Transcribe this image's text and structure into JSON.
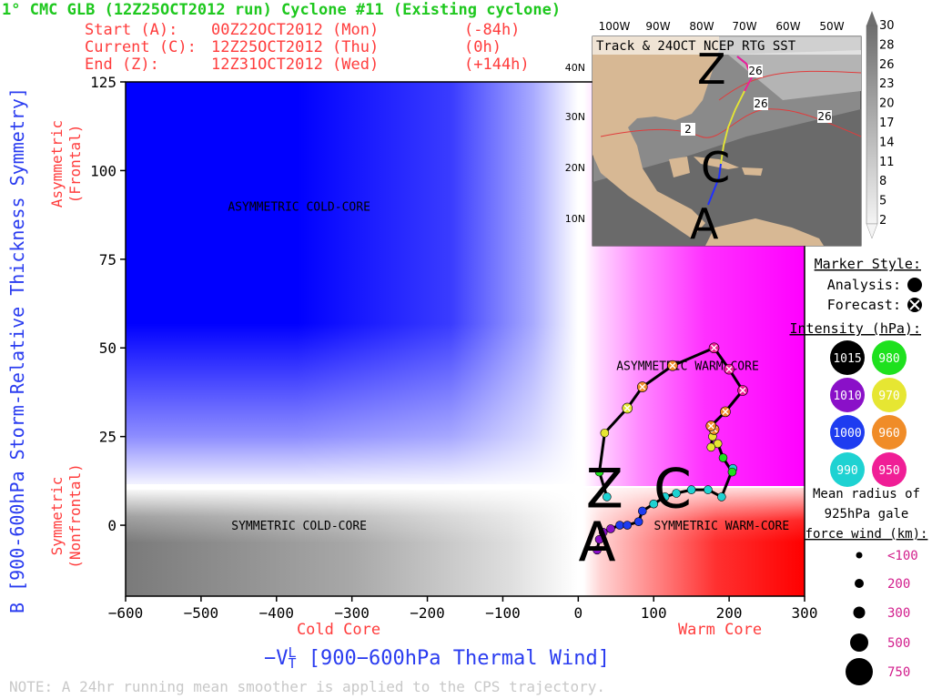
{
  "header": {
    "title": "1° CMC GLB (12Z25OCT2012 run) Cyclone #11 (Existing cyclone)",
    "start_label": "Start (A):",
    "start_time": "00Z22OCT2012 (Mon)",
    "start_offset": "(-84h)",
    "current_label": "Current (C):",
    "current_time": "12Z25OCT2012 (Thu)",
    "current_offset": "(0h)",
    "end_label": "End (Z):",
    "end_time": "12Z31OCT2012 (Wed)",
    "end_offset": "(+144h)"
  },
  "colors": {
    "title": "#1ec81e",
    "header": "#ff3c3c",
    "axis_blue": "#2a3cf0",
    "asym_cold": "#0000ff",
    "sym_warm": "#ff0000",
    "asym_warm": "#ff00ff"
  },
  "chart_data": {
    "type": "scatter",
    "xlabel": "-V_T^L [900-600hPa Thermal Wind]",
    "ylabel": "B [900-600hPa Storm-Relative Thickness Symmetry]",
    "xlim": [
      -600,
      300
    ],
    "ylim": [
      -20,
      125
    ],
    "xticks": [
      -600,
      -500,
      -400,
      -300,
      -200,
      -100,
      0,
      100,
      200,
      300
    ],
    "yticks": [
      0,
      25,
      50,
      75,
      100,
      125
    ],
    "x_side_labels": [
      "Cold Core",
      "Warm Core"
    ],
    "y_side_labels": [
      {
        "line1": "Symmetric",
        "line2": "(Nonfrontal)"
      },
      {
        "line1": "Asymmetric",
        "line2": "(Frontal)"
      }
    ],
    "region_labels": [
      {
        "text": "ASYMMETRIC COLD-CORE",
        "x": -370,
        "y": 90
      },
      {
        "text": "ASYMMETRIC WARM-CORE",
        "x": 145,
        "y": 45
      },
      {
        "text": "SYMMETRIC COLD-CORE",
        "x": -370,
        "y": 0
      },
      {
        "text": "SYMMETRIC WARM-CORE",
        "x": 190,
        "y": 0
      }
    ],
    "trajectory": [
      {
        "x": 25,
        "y": -7,
        "p": 1010,
        "fc": false
      },
      {
        "x": 28,
        "y": -4,
        "p": 1010,
        "fc": false
      },
      {
        "x": 33,
        "y": -2,
        "p": 1010,
        "fc": false
      },
      {
        "x": 43,
        "y": -1,
        "p": 1005,
        "fc": false
      },
      {
        "x": 55,
        "y": 0,
        "p": 1000,
        "fc": false
      },
      {
        "x": 65,
        "y": 0,
        "p": 1000,
        "fc": false
      },
      {
        "x": 80,
        "y": 1,
        "p": 1000,
        "fc": false
      },
      {
        "x": 85,
        "y": 4,
        "p": 995,
        "fc": false
      },
      {
        "x": 100,
        "y": 6,
        "p": 992,
        "fc": false
      },
      {
        "x": 115,
        "y": 8,
        "p": 990,
        "fc": false
      },
      {
        "x": 130,
        "y": 9,
        "p": 990,
        "fc": false
      },
      {
        "x": 150,
        "y": 10,
        "p": 990,
        "fc": false
      },
      {
        "x": 172,
        "y": 10,
        "p": 990,
        "fc": false
      },
      {
        "x": 190,
        "y": 8,
        "p": 990,
        "fc": false
      },
      {
        "x": 205,
        "y": 16,
        "p": 985,
        "fc": false
      },
      {
        "x": 204,
        "y": 15,
        "p": 980,
        "fc": false
      },
      {
        "x": 192,
        "y": 19,
        "p": 975,
        "fc": false
      },
      {
        "x": 185,
        "y": 23,
        "p": 970,
        "fc": false
      },
      {
        "x": 176,
        "y": 22,
        "p": 970,
        "fc": false
      },
      {
        "x": 178,
        "y": 25,
        "p": 965,
        "fc": false
      },
      {
        "x": 180,
        "y": 27,
        "p": 960,
        "fc": true
      },
      {
        "x": 176,
        "y": 28,
        "p": 960,
        "fc": true
      },
      {
        "x": 195,
        "y": 32,
        "p": 955,
        "fc": true
      },
      {
        "x": 218,
        "y": 38,
        "p": 950,
        "fc": true
      },
      {
        "x": 200,
        "y": 44,
        "p": 950,
        "fc": true
      },
      {
        "x": 180,
        "y": 50,
        "p": 950,
        "fc": true
      },
      {
        "x": 125,
        "y": 45,
        "p": 955,
        "fc": true
      },
      {
        "x": 85,
        "y": 39,
        "p": 960,
        "fc": true
      },
      {
        "x": 65,
        "y": 33,
        "p": 965,
        "fc": true
      },
      {
        "x": 35,
        "y": 26,
        "p": 970,
        "fc": false
      },
      {
        "x": 28,
        "y": 15,
        "p": 980,
        "fc": false
      },
      {
        "x": 38,
        "y": 8,
        "p": 985,
        "fc": false
      }
    ],
    "letters": [
      {
        "text": "A",
        "x": 25,
        "y": -10
      },
      {
        "text": "C",
        "x": 125,
        "y": 5
      },
      {
        "text": "Z",
        "x": 35,
        "y": 5
      }
    ]
  },
  "inset": {
    "title": "Track & 24OCT NCEP RTG SST",
    "lon_labels": [
      "100W",
      "90W",
      "80W",
      "70W",
      "60W",
      "50W"
    ],
    "lat_labels": [
      "40N",
      "30N",
      "20N",
      "10N"
    ],
    "sst_colorbar": [
      "30",
      "28",
      "26",
      "23",
      "20",
      "17",
      "14",
      "11",
      "8",
      "5",
      "2"
    ],
    "contour_labels": [
      "26",
      "26",
      "26",
      "2"
    ],
    "track_letters": [
      "Z",
      "C",
      "A"
    ]
  },
  "legend": {
    "marker_title": "Marker Style:",
    "analysis_label": "Analysis:",
    "forecast_label": "Forecast:",
    "intensity_title": "Intensity (hPa):",
    "intensities": [
      {
        "value": "1015",
        "color": "#000000",
        "text_color": "#ffffff"
      },
      {
        "value": "980",
        "color": "#1ee11e",
        "text_color": "#ffffff"
      },
      {
        "value": "1010",
        "color": "#8a10c8",
        "text_color": "#ffffff"
      },
      {
        "value": "970",
        "color": "#e6e632",
        "text_color": "#ffffff"
      },
      {
        "value": "1000",
        "color": "#1e3cf0",
        "text_color": "#ffffff"
      },
      {
        "value": "960",
        "color": "#f08c28",
        "text_color": "#ffffff"
      },
      {
        "value": "990",
        "color": "#1ed2d2",
        "text_color": "#ffffff"
      },
      {
        "value": "950",
        "color": "#f01e96",
        "text_color": "#ffffff"
      }
    ],
    "radius_title_1": "Mean radius of",
    "radius_title_2": "925hPa gale",
    "radius_title_3": "force wind (km):",
    "radii": [
      "<100",
      "200",
      "300",
      "500",
      "750"
    ]
  },
  "note": "NOTE:  A 24hr running mean smoother is applied to the CPS trajectory."
}
